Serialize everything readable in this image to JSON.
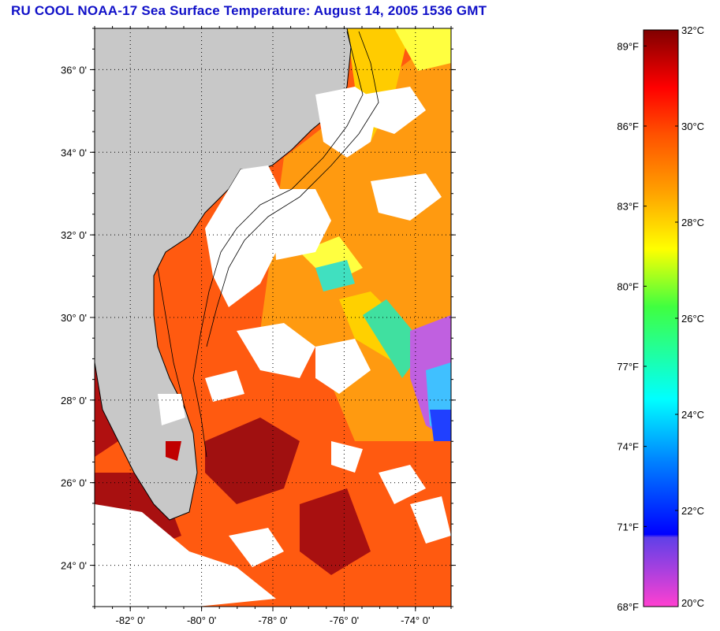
{
  "title": "RU COOL  NOAA-17  Sea Surface Temperature:  August 14, 2005 1536 GMT",
  "map": {
    "lon_range": [
      -83,
      -73
    ],
    "lat_range": [
      23,
      37
    ],
    "lat_ticks": [
      {
        "value": 36,
        "label": "36° 0'"
      },
      {
        "value": 34,
        "label": "34° 0'"
      },
      {
        "value": 32,
        "label": "32° 0'"
      },
      {
        "value": 30,
        "label": "30° 0'"
      },
      {
        "value": 28,
        "label": "28° 0'"
      },
      {
        "value": 26,
        "label": "26° 0'"
      },
      {
        "value": 24,
        "label": "24° 0'"
      }
    ],
    "lon_ticks": [
      {
        "value": -82,
        "label": "-82° 0'"
      },
      {
        "value": -80,
        "label": "-80° 0'"
      },
      {
        "value": -78,
        "label": "-78° 0'"
      },
      {
        "value": -76,
        "label": "-76° 0'"
      },
      {
        "value": -74,
        "label": "-74° 0'"
      }
    ],
    "grid": "dotted",
    "land_color": "#c8c8c8",
    "cloud_color": "#ffffff"
  },
  "colorbar": {
    "celsius_range": [
      20,
      32
    ],
    "celsius_labels": [
      "32°C",
      "30°C",
      "28°C",
      "26°C",
      "24°C",
      "22°C",
      "20°C"
    ],
    "fahrenheit_labels": [
      {
        "value": 89,
        "label": "89°F"
      },
      {
        "value": 86,
        "label": "86°F"
      },
      {
        "value": 83,
        "label": "83°F"
      },
      {
        "value": 80,
        "label": "80°F"
      },
      {
        "value": 77,
        "label": "77°F"
      },
      {
        "value": 74,
        "label": "74°F"
      },
      {
        "value": 71,
        "label": "71°F"
      },
      {
        "value": 68,
        "label": "68°F"
      }
    ],
    "colors": [
      "#ff40d0",
      "#8040e0",
      "#0000ff",
      "#00a0ff",
      "#00ffff",
      "#00ff80",
      "#ffff00",
      "#ffa000",
      "#ff4000",
      "#ff0000",
      "#800000"
    ]
  }
}
